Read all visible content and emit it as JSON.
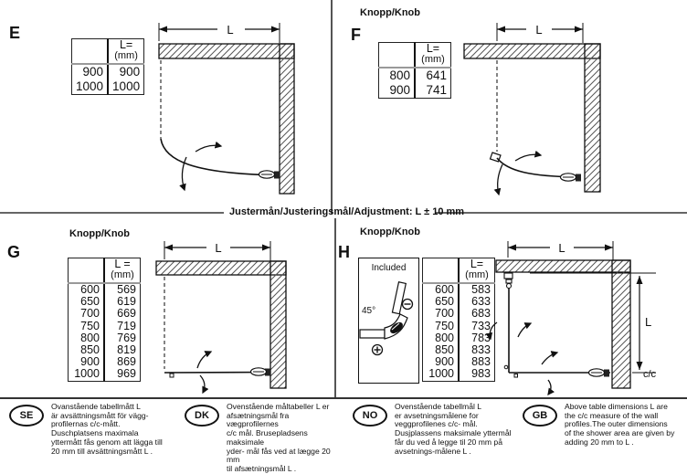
{
  "page": {
    "adjustment_text": "Justermån/Justeringsmål/Adjustment: L ± 10 mm"
  },
  "sections": {
    "e": {
      "letter": "E",
      "dim_label": "L",
      "table": {
        "header_value": "L=",
        "header_unit": "(mm)",
        "rows": [
          [
            "900",
            "900"
          ],
          [
            "1000",
            "1000"
          ]
        ]
      }
    },
    "f": {
      "letter": "F",
      "knob_label": "Knopp/Knob",
      "dim_label": "L",
      "table": {
        "header_value": "L=",
        "header_unit": "(mm)",
        "rows": [
          [
            "800",
            "641"
          ],
          [
            "900",
            "741"
          ]
        ]
      }
    },
    "g": {
      "letter": "G",
      "knob_label": "Knopp/Knob",
      "dim_label": "L",
      "table": {
        "header_value": "L =",
        "header_unit": "(mm)",
        "rows": [
          [
            "600",
            "569"
          ],
          [
            "650",
            "619"
          ],
          [
            "700",
            "669"
          ],
          [
            "750",
            "719"
          ],
          [
            "800",
            "769"
          ],
          [
            "850",
            "819"
          ],
          [
            "900",
            "869"
          ],
          [
            "1000",
            "969"
          ]
        ]
      }
    },
    "h": {
      "letter": "H",
      "knob_label": "Knopp/Knob",
      "dim_label_top": "L",
      "dim_label_right": "L",
      "cc_label": "c/c",
      "included": {
        "label": "Included",
        "angle": "45°",
        "minus": "−",
        "plus": "+"
      },
      "table": {
        "header_value": "L=",
        "header_unit": "(mm)",
        "rows": [
          [
            "600",
            "583"
          ],
          [
            "650",
            "633"
          ],
          [
            "700",
            "683"
          ],
          [
            "750",
            "733"
          ],
          [
            "800",
            "783"
          ],
          [
            "850",
            "833"
          ],
          [
            "900",
            "883"
          ],
          [
            "1000",
            "983"
          ]
        ]
      }
    }
  },
  "footer": {
    "notes": [
      {
        "code": "SE",
        "text": "Ovanstående tabellmått L\när avsättningsmått för vägg-\nprofilernas c/c-mått.\nDuschplatsens maximala\nyttermått fås genom att lägga till\n20 mm till avsättningsmått L ."
      },
      {
        "code": "DK",
        "text": "Ovenstående måltabeller L er\nafsætningsmål fra vægprofilernes\nc/c mål. Brusepladsens maksimale\nyder- mål fås ved at lægge 20 mm\ntil afsætningsmål L ."
      },
      {
        "code": "NO",
        "text": "Ovenstående tabellmål L\ner avsetningsmålene for\nveggprofilenes c/c- mål.\nDusjplassens maksimale yttermål\nfår du ved å legge til 20 mm på\navsetnings-målene L ."
      },
      {
        "code": "GB",
        "text": "Above table dimensions L are\nthe c/c measure of the wall\nprofiles.The outer dimensions\nof the shower area are given by\nadding 20 mm to L ."
      }
    ]
  }
}
